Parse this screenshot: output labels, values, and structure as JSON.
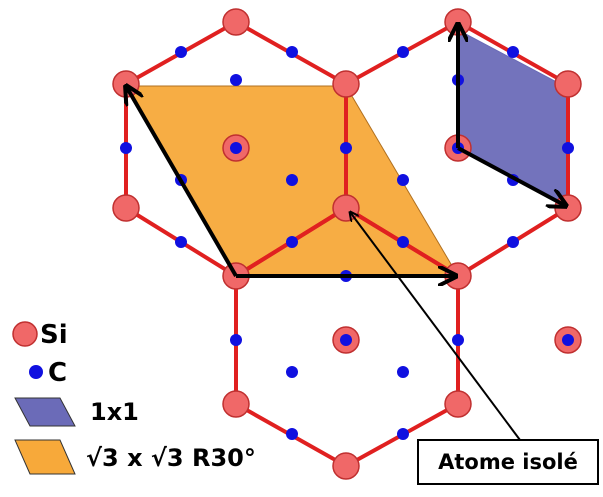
{
  "legend": {
    "si_label": "Si",
    "c_label": "C",
    "cell_1x1_label": "1x1",
    "cell_r30_label": "√3 x √3 R30°"
  },
  "annotation": {
    "isolated_atom_label": "Atome isolé"
  },
  "colors": {
    "si_fill": "#f06868",
    "si_stroke": "#c03030",
    "c_fill": "#1010e0",
    "bond": "#e02020",
    "cell_1x1_fill": "#6b6bb8",
    "cell_r30_fill": "#f7a93a",
    "arrow": "#000000"
  }
}
